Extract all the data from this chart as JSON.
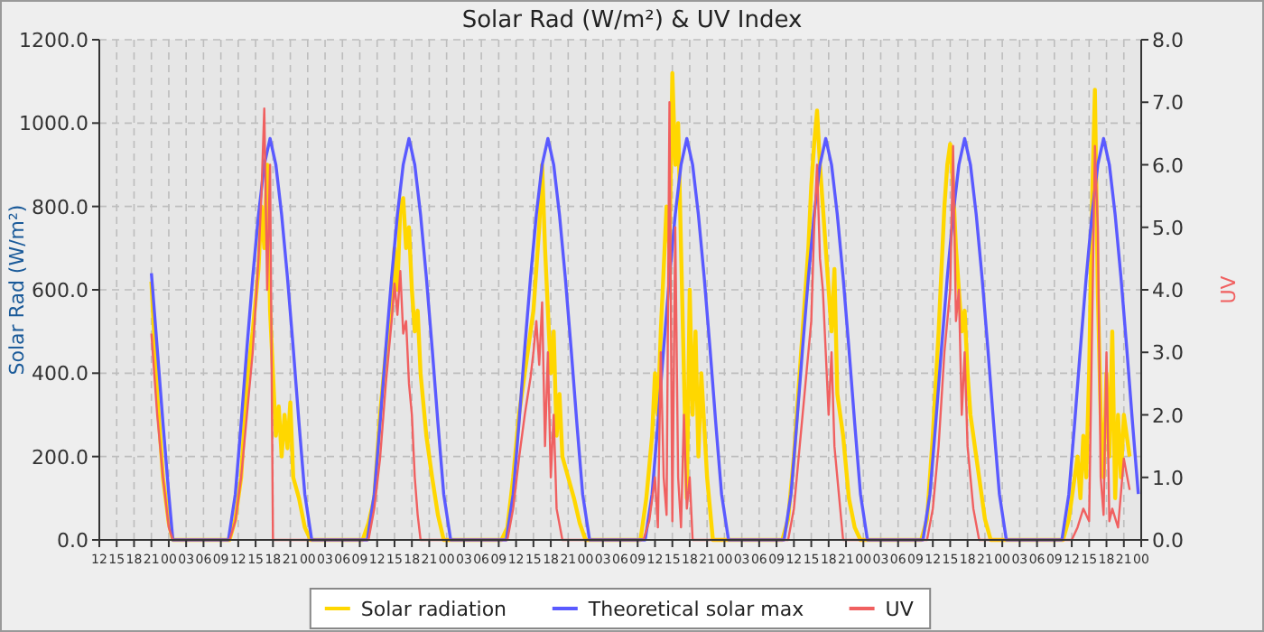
{
  "chart_data": {
    "type": "line",
    "title": "Solar Rad (W/m²) &  UV Index",
    "ylabel": "Solar Rad (W/m²)",
    "y2label": "UV",
    "xlim": [
      12,
      192
    ],
    "xticks": [
      {
        "value": 12,
        "label": "12"
      },
      {
        "value": 15,
        "label": "15"
      },
      {
        "value": 18,
        "label": "18"
      },
      {
        "value": 21,
        "label": "21"
      },
      {
        "value": 24,
        "label": "00"
      },
      {
        "value": 27,
        "label": "03"
      },
      {
        "value": 30,
        "label": "06"
      },
      {
        "value": 33,
        "label": "09"
      },
      {
        "value": 36,
        "label": "12"
      },
      {
        "value": 39,
        "label": "15"
      },
      {
        "value": 42,
        "label": "18"
      },
      {
        "value": 45,
        "label": "21"
      },
      {
        "value": 48,
        "label": "00"
      },
      {
        "value": 51,
        "label": "03"
      },
      {
        "value": 54,
        "label": "06"
      },
      {
        "value": 57,
        "label": "09"
      },
      {
        "value": 60,
        "label": "12"
      },
      {
        "value": 63,
        "label": "15"
      },
      {
        "value": 66,
        "label": "18"
      },
      {
        "value": 69,
        "label": "21"
      },
      {
        "value": 72,
        "label": "00"
      },
      {
        "value": 75,
        "label": "03"
      },
      {
        "value": 78,
        "label": "06"
      },
      {
        "value": 81,
        "label": "09"
      },
      {
        "value": 84,
        "label": "12"
      },
      {
        "value": 87,
        "label": "15"
      },
      {
        "value": 90,
        "label": "18"
      },
      {
        "value": 93,
        "label": "21"
      },
      {
        "value": 96,
        "label": "00"
      },
      {
        "value": 99,
        "label": "03"
      },
      {
        "value": 102,
        "label": "06"
      },
      {
        "value": 105,
        "label": "09"
      },
      {
        "value": 108,
        "label": "12"
      },
      {
        "value": 111,
        "label": "15"
      },
      {
        "value": 114,
        "label": "18"
      },
      {
        "value": 117,
        "label": "21"
      },
      {
        "value": 120,
        "label": "00"
      },
      {
        "value": 123,
        "label": "03"
      },
      {
        "value": 126,
        "label": "06"
      },
      {
        "value": 129,
        "label": "09"
      },
      {
        "value": 132,
        "label": "12"
      },
      {
        "value": 135,
        "label": "15"
      },
      {
        "value": 138,
        "label": "18"
      },
      {
        "value": 141,
        "label": "21"
      },
      {
        "value": 144,
        "label": "00"
      },
      {
        "value": 147,
        "label": "03"
      },
      {
        "value": 150,
        "label": "06"
      },
      {
        "value": 153,
        "label": "09"
      },
      {
        "value": 156,
        "label": "12"
      },
      {
        "value": 159,
        "label": "15"
      },
      {
        "value": 162,
        "label": "18"
      },
      {
        "value": 165,
        "label": "21"
      },
      {
        "value": 168,
        "label": "00"
      },
      {
        "value": 171,
        "label": "03"
      },
      {
        "value": 174,
        "label": "06"
      },
      {
        "value": 177,
        "label": "09"
      },
      {
        "value": 180,
        "label": "12"
      },
      {
        "value": 183,
        "label": "15"
      },
      {
        "value": 186,
        "label": "18"
      },
      {
        "value": 189,
        "label": "21"
      },
      {
        "value": 192,
        "label": "00"
      }
    ],
    "ylim": [
      0,
      1200
    ],
    "yticks": [
      {
        "value": 0,
        "label": "0.0"
      },
      {
        "value": 200,
        "label": "200.0"
      },
      {
        "value": 400,
        "label": "400.0"
      },
      {
        "value": 600,
        "label": "600.0"
      },
      {
        "value": 800,
        "label": "800.0"
      },
      {
        "value": 1000,
        "label": "1000.0"
      },
      {
        "value": 1200,
        "label": "1200.0"
      }
    ],
    "y2lim": [
      0,
      8
    ],
    "y2ticks": [
      {
        "value": 0,
        "label": "0.0"
      },
      {
        "value": 1,
        "label": "1.0"
      },
      {
        "value": 2,
        "label": "2.0"
      },
      {
        "value": 3,
        "label": "3.0"
      },
      {
        "value": 4,
        "label": "4.0"
      },
      {
        "value": 5,
        "label": "5.0"
      },
      {
        "value": 6,
        "label": "6.0"
      },
      {
        "value": 7,
        "label": "7.0"
      },
      {
        "value": 8,
        "label": "8.0"
      }
    ],
    "grid": true,
    "legend": "bottom",
    "series": [
      {
        "name": "Solar radiation",
        "color": "#ffd700",
        "x": [
          21,
          22,
          23,
          24,
          24.7,
          34.5,
          35.5,
          36.5,
          37.5,
          38.5,
          39.5,
          40,
          40.5,
          41,
          41.5,
          42,
          42.5,
          43,
          43.5,
          44,
          44.5,
          45,
          45.5,
          46.5,
          47.5,
          48.5,
          57.5,
          58.5,
          59.5,
          60.5,
          61.5,
          62.5,
          63,
          63.5,
          64,
          64.5,
          65,
          65.5,
          66,
          66.5,
          67,
          67.5,
          68.5,
          69.5,
          70.5,
          71.5,
          81.5,
          82.5,
          83.5,
          84.5,
          85.5,
          86.5,
          87,
          87.5,
          88,
          88.5,
          89,
          89.5,
          90,
          90.5,
          91,
          91.5,
          92,
          93,
          94,
          95,
          96,
          105.5,
          106.5,
          107.5,
          108,
          108.5,
          109,
          109.5,
          110,
          110.5,
          111,
          111.5,
          112,
          112.5,
          113,
          113.5,
          114,
          114.5,
          115,
          115.5,
          116,
          117,
          118,
          130,
          131,
          132,
          133,
          134,
          134.5,
          135,
          135.5,
          136,
          136.5,
          137,
          137.5,
          138,
          138.5,
          139,
          139.5,
          140.5,
          141.5,
          142.5,
          143.5,
          154,
          155,
          156,
          157,
          157.5,
          158,
          158.5,
          159,
          159.5,
          160,
          160.5,
          161,
          161.5,
          162,
          162.5,
          163,
          164,
          165,
          166,
          178.5,
          179.5,
          180.5,
          181,
          181.5,
          182,
          182.5,
          183,
          183.5,
          184,
          184.5,
          185,
          185.5,
          186,
          186.5,
          187,
          187.5,
          188,
          188.5,
          189,
          190
        ],
        "values": [
          620,
          350,
          150,
          40,
          0,
          0,
          50,
          150,
          380,
          500,
          650,
          800,
          700,
          900,
          550,
          400,
          250,
          320,
          200,
          300,
          220,
          330,
          150,
          100,
          30,
          0,
          0,
          40,
          100,
          300,
          450,
          550,
          700,
          600,
          800,
          820,
          700,
          750,
          600,
          500,
          550,
          400,
          250,
          150,
          60,
          0,
          0,
          30,
          150,
          300,
          400,
          500,
          550,
          650,
          750,
          900,
          700,
          550,
          400,
          500,
          250,
          350,
          200,
          150,
          100,
          40,
          0,
          0,
          100,
          250,
          400,
          300,
          500,
          650,
          800,
          700,
          1120,
          900,
          1000,
          700,
          400,
          100,
          600,
          300,
          500,
          200,
          400,
          150,
          0,
          0,
          50,
          200,
          400,
          600,
          700,
          850,
          950,
          1030,
          900,
          800,
          700,
          600,
          500,
          650,
          350,
          250,
          100,
          30,
          0,
          0,
          50,
          250,
          500,
          650,
          800,
          900,
          950,
          850,
          700,
          600,
          500,
          550,
          400,
          300,
          250,
          150,
          50,
          0,
          0,
          50,
          150,
          200,
          100,
          250,
          150,
          400,
          800,
          1080,
          600,
          300,
          150,
          400,
          200,
          500,
          100,
          300,
          150,
          300,
          200
        ]
      },
      {
        "name": "Theoretical solar max",
        "color": "#5a5aff",
        "x": [
          21,
          22,
          23,
          24,
          24.7,
          34.3,
          35.5,
          36.5,
          37.5,
          38.5,
          39.5,
          40.5,
          41.5,
          42.5,
          43.5,
          44.5,
          45.5,
          46.5,
          47.5,
          48.7,
          58.3,
          59.5,
          60.5,
          61.5,
          62.5,
          63.5,
          64.5,
          65.5,
          66.5,
          67.5,
          68.5,
          69.5,
          70.5,
          71.5,
          72.7,
          82.3,
          83.5,
          84.5,
          85.5,
          86.5,
          87.5,
          88.5,
          89.5,
          90.5,
          91.5,
          92.5,
          93.5,
          94.5,
          95.5,
          96.7,
          106.3,
          107.5,
          108.5,
          109.5,
          110.5,
          111.5,
          112.5,
          113.5,
          114.5,
          115.5,
          116.5,
          117.5,
          118.5,
          119.5,
          120.7,
          130.3,
          131.5,
          132.5,
          133.5,
          134.5,
          135.5,
          136.5,
          137.5,
          138.5,
          139.5,
          140.5,
          141.5,
          142.5,
          143.5,
          144.7,
          154.3,
          155.5,
          156.5,
          157.5,
          158.5,
          159.5,
          160.5,
          161.5,
          162.5,
          163.5,
          164.5,
          165.5,
          166.5,
          167.5,
          168.7,
          178.3,
          179.5,
          180.5,
          181.5,
          182.5,
          183.5,
          184.5,
          185.5,
          186.5,
          187.5,
          188.5,
          189.5,
          190.5,
          191.5
        ],
        "values": [
          640,
          460,
          280,
          110,
          0,
          0,
          110,
          280,
          460,
          630,
          780,
          900,
          963,
          900,
          780,
          630,
          460,
          280,
          110,
          0,
          0,
          110,
          280,
          460,
          630,
          780,
          900,
          963,
          900,
          780,
          630,
          460,
          280,
          110,
          0,
          0,
          110,
          280,
          460,
          630,
          780,
          900,
          963,
          900,
          780,
          630,
          460,
          280,
          110,
          0,
          0,
          110,
          280,
          460,
          630,
          780,
          900,
          963,
          900,
          780,
          630,
          460,
          280,
          110,
          0,
          0,
          110,
          280,
          460,
          630,
          780,
          900,
          963,
          900,
          780,
          630,
          460,
          280,
          110,
          0,
          0,
          110,
          280,
          460,
          630,
          780,
          900,
          963,
          900,
          780,
          630,
          460,
          280,
          110,
          0,
          0,
          110,
          280,
          460,
          630,
          780,
          900,
          963,
          900,
          780,
          630,
          460,
          280,
          110
        ]
      },
      {
        "name": "UV",
        "color": "#f06060",
        "axis": "y2",
        "x": [
          21,
          22,
          23,
          24,
          24.7,
          34.5,
          35.5,
          36.5,
          37.5,
          38.5,
          39.5,
          40,
          40.5,
          41,
          41.5,
          42,
          58.5,
          59.5,
          60.5,
          61.5,
          62.5,
          63,
          63.5,
          64,
          64.5,
          65,
          65.5,
          66,
          66.5,
          67,
          67.5,
          82.5,
          83.5,
          84.5,
          85.5,
          86.5,
          87,
          87.5,
          88,
          88.5,
          89,
          89.5,
          90,
          90.5,
          91,
          92,
          106,
          107,
          108,
          108.5,
          109,
          109.5,
          110,
          110.5,
          111,
          111.5,
          112,
          112.5,
          113,
          113.5,
          114,
          114.5,
          131,
          132,
          133,
          134,
          135,
          135.5,
          136,
          136.5,
          137,
          137.5,
          138,
          138.5,
          139,
          140,
          140.5,
          155,
          156,
          157,
          158,
          159,
          159.5,
          160,
          160.5,
          161,
          161.5,
          162,
          163,
          164,
          180,
          181,
          182,
          183,
          184,
          184.5,
          185,
          185.5,
          186,
          186.5,
          187,
          188,
          189,
          190
        ],
        "values": [
          3.3,
          2,
          1,
          0.2,
          0,
          0,
          0.3,
          1,
          2,
          3,
          4.5,
          5.5,
          6.9,
          4,
          6,
          0,
          0,
          0.5,
          1.3,
          2.5,
          3.5,
          4.1,
          3.6,
          4.3,
          3.3,
          3.5,
          2.5,
          2,
          1,
          0.4,
          0,
          0,
          0.5,
          1.3,
          2,
          2.6,
          3,
          3.5,
          2.8,
          3.8,
          1.5,
          3,
          1,
          2,
          0.5,
          0,
          0,
          0.3,
          1,
          0.2,
          3,
          1,
          0.4,
          7,
          0.3,
          5,
          1,
          0.2,
          2,
          0.5,
          1,
          0,
          0,
          0.5,
          1.5,
          2.5,
          3.5,
          5,
          6,
          4.5,
          4,
          3,
          2,
          3,
          1.5,
          0.5,
          0,
          0,
          0.5,
          1.5,
          3,
          4,
          6.3,
          3.5,
          4,
          2,
          3,
          1.5,
          0.5,
          0,
          0,
          0.2,
          0.5,
          0.3,
          6.3,
          5,
          1,
          0.4,
          3,
          0.3,
          0.5,
          0.2,
          1.3,
          0.8
        ]
      }
    ]
  }
}
